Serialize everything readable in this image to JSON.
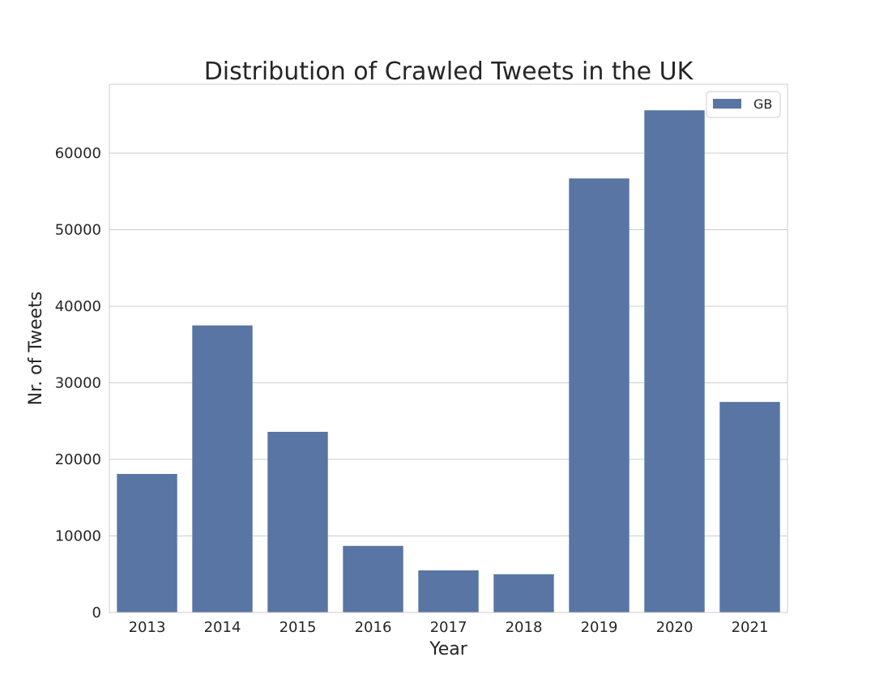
{
  "chart_data": {
    "type": "bar",
    "title": "Distribution of Crawled Tweets in the UK",
    "xlabel": "Year",
    "ylabel": "Nr. of Tweets",
    "categories": [
      "2013",
      "2014",
      "2015",
      "2016",
      "2017",
      "2018",
      "2019",
      "2020",
      "2021"
    ],
    "series": [
      {
        "name": "GB",
        "values": [
          18100,
          37500,
          23600,
          8700,
          5500,
          5000,
          56700,
          65600,
          27500
        ],
        "color": "#5975a4"
      }
    ],
    "ylim": [
      0,
      69000
    ],
    "yticks": [
      0,
      10000,
      20000,
      30000,
      40000,
      50000,
      60000
    ],
    "ytick_labels": [
      "0",
      "10000",
      "20000",
      "30000",
      "40000",
      "50000",
      "60000"
    ],
    "grid": true,
    "legend_position": "upper right"
  }
}
